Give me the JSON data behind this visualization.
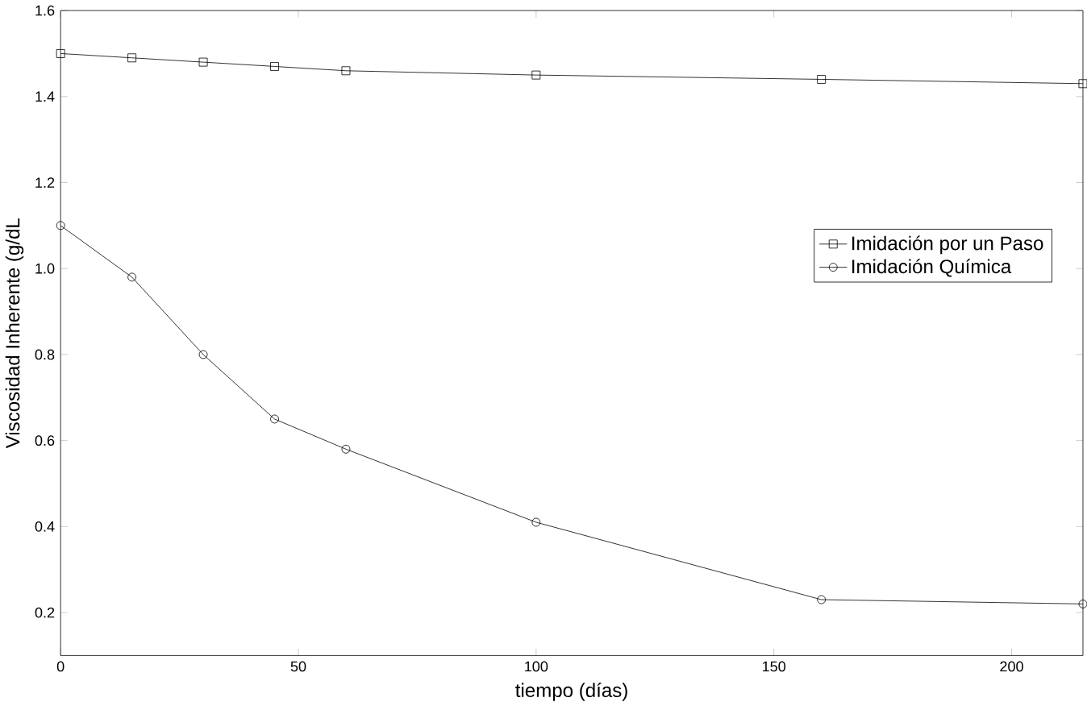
{
  "chart_data": {
    "type": "line",
    "xlabel": "tiempo (días)",
    "ylabel": "Viscosidad Inherente (g/dL",
    "x": [
      0,
      15,
      30,
      45,
      60,
      100,
      160,
      215
    ],
    "series": [
      {
        "name": "Imidación por un Paso",
        "color": "#000000",
        "marker": "square",
        "values": [
          1.5,
          1.49,
          1.48,
          1.47,
          1.46,
          1.45,
          1.44,
          1.43
        ]
      },
      {
        "name": "Imidación Química",
        "color": "#000000",
        "marker": "circle",
        "values": [
          1.1,
          0.98,
          0.8,
          0.65,
          0.58,
          0.41,
          0.23,
          0.22
        ]
      }
    ],
    "xlim": [
      0,
      215
    ],
    "ylim": [
      0.1,
      1.6
    ],
    "xticks": [
      0,
      50,
      100,
      150,
      200
    ],
    "yticks": [
      {
        "value": 0.2,
        "label": "0.2"
      },
      {
        "value": 0.4,
        "label": "0.4"
      },
      {
        "value": 0.6,
        "label": "0.6"
      },
      {
        "value": 0.8,
        "label": "0.8"
      },
      {
        "value": 1.0,
        "label": "1.0"
      },
      {
        "value": 1.2,
        "label": "1.2"
      },
      {
        "value": 1.4,
        "label": "1.4"
      },
      {
        "value": 1.6,
        "label": "1.6"
      }
    ],
    "legend": "right",
    "line_style": "solid"
  }
}
